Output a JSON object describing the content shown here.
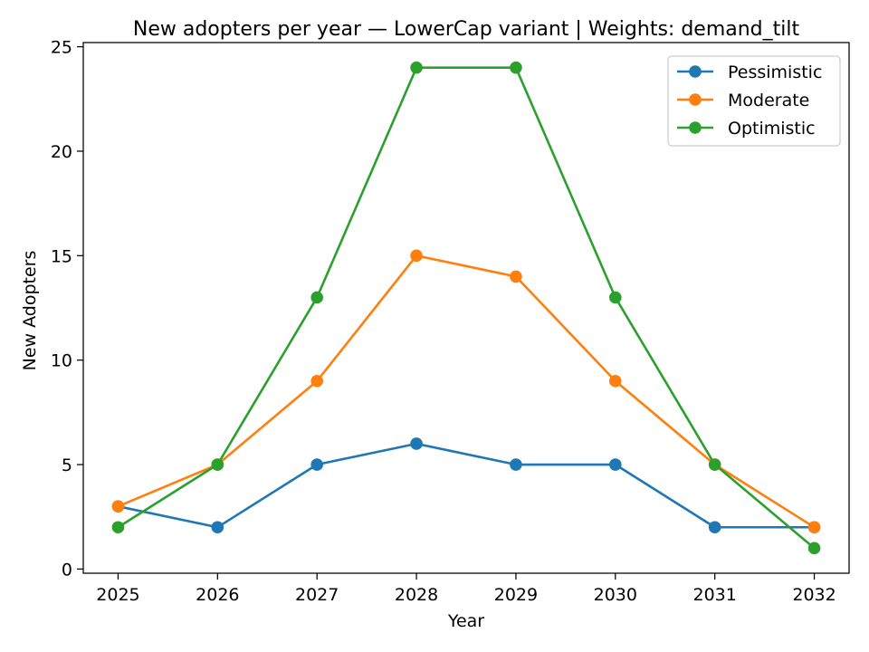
{
  "chart_data": {
    "type": "line",
    "title": "New adopters per year — LowerCap variant | Weights: demand_tilt",
    "xlabel": "Year",
    "ylabel": "New Adopters",
    "x": [
      2025,
      2026,
      2027,
      2028,
      2029,
      2030,
      2031,
      2032
    ],
    "xlim": [
      2024.65,
      2032.35
    ],
    "ylim": [
      -0.2,
      25.2
    ],
    "yticks": [
      0,
      5,
      10,
      15,
      20,
      25
    ],
    "grid": false,
    "legend_position": "upper-right",
    "marker": "circle",
    "series": [
      {
        "name": "Pessimistic",
        "color": "#1f77b4",
        "values": [
          3,
          2,
          5,
          6,
          5,
          5,
          2,
          2
        ]
      },
      {
        "name": "Moderate",
        "color": "#ff7f0e",
        "values": [
          3,
          5,
          9,
          15,
          14,
          9,
          5,
          2
        ]
      },
      {
        "name": "Optimistic",
        "color": "#2ca02c",
        "values": [
          2,
          5,
          13,
          24,
          24,
          13,
          5,
          1
        ]
      }
    ]
  }
}
